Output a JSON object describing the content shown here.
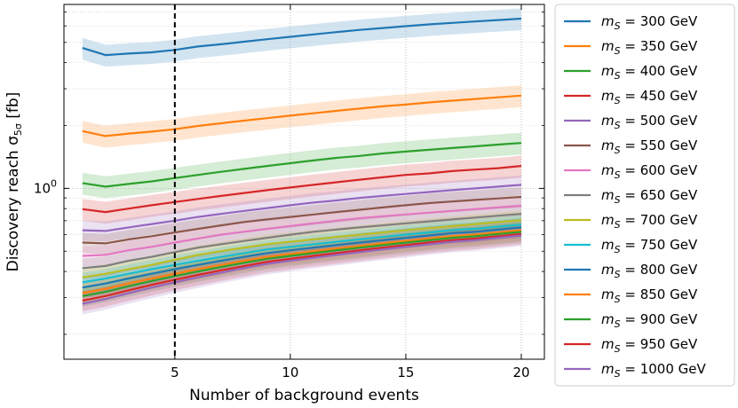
{
  "chart_data": {
    "type": "line",
    "title": "",
    "xlabel": "Number of background events",
    "ylabel_main": "Discovery reach σ",
    "ylabel_sub": "5σ",
    "ylabel_unit": " [fb]",
    "yscale": "log",
    "xlim": [
      0.2,
      21.0
    ],
    "ylim": [
      0.152,
      7.6
    ],
    "x_ticks": [
      5,
      10,
      15,
      20
    ],
    "y_tick_value": 1.0,
    "y_tick_text": "10",
    "y_tick_exp": "0",
    "grid": true,
    "vline_x": 5,
    "vline_style": "dashed",
    "legend_position": "outside-right",
    "legend_prefix": "m",
    "legend_sub": "S",
    "legend_eq": " = ",
    "x": [
      1,
      2,
      3,
      4,
      5,
      6,
      7,
      8,
      9,
      10,
      11,
      12,
      13,
      14,
      15,
      16,
      17,
      18,
      19,
      20
    ],
    "series": [
      {
        "name": "300 GeV",
        "color": "#1f77b4",
        "values": [
          4.7,
          4.35,
          4.42,
          4.48,
          4.6,
          4.78,
          4.9,
          5.04,
          5.18,
          5.32,
          5.46,
          5.6,
          5.74,
          5.86,
          5.98,
          6.1,
          6.2,
          6.3,
          6.4,
          6.5
        ],
        "band": 0.12
      },
      {
        "name": "350 GeV",
        "color": "#ff7f0e",
        "values": [
          1.88,
          1.78,
          1.83,
          1.87,
          1.92,
          1.99,
          2.05,
          2.11,
          2.17,
          2.23,
          2.29,
          2.35,
          2.41,
          2.47,
          2.52,
          2.58,
          2.63,
          2.68,
          2.73,
          2.78
        ],
        "band": 0.12
      },
      {
        "name": "400 GeV",
        "color": "#2ca02c",
        "values": [
          1.06,
          1.02,
          1.05,
          1.08,
          1.12,
          1.16,
          1.2,
          1.24,
          1.28,
          1.32,
          1.36,
          1.4,
          1.43,
          1.47,
          1.5,
          1.53,
          1.56,
          1.59,
          1.62,
          1.65
        ],
        "band": 0.12
      },
      {
        "name": "450 GeV",
        "color": "#d62728",
        "values": [
          0.795,
          0.77,
          0.8,
          0.83,
          0.86,
          0.89,
          0.92,
          0.95,
          0.98,
          1.01,
          1.04,
          1.07,
          1.1,
          1.13,
          1.16,
          1.18,
          1.21,
          1.23,
          1.25,
          1.28
        ],
        "band": 0.12
      },
      {
        "name": "500 GeV",
        "color": "#9467bd",
        "values": [
          0.63,
          0.625,
          0.65,
          0.675,
          0.7,
          0.73,
          0.755,
          0.78,
          0.805,
          0.83,
          0.855,
          0.875,
          0.9,
          0.92,
          0.94,
          0.96,
          0.98,
          1.0,
          1.02,
          1.04
        ],
        "band": 0.11
      },
      {
        "name": "550 GeV",
        "color": "#8c564b",
        "values": [
          0.55,
          0.545,
          0.57,
          0.59,
          0.615,
          0.64,
          0.665,
          0.69,
          0.71,
          0.73,
          0.75,
          0.77,
          0.79,
          0.81,
          0.83,
          0.85,
          0.865,
          0.88,
          0.895,
          0.91
        ],
        "band": 0.11
      },
      {
        "name": "600 GeV",
        "color": "#e377c2",
        "values": [
          0.475,
          0.48,
          0.505,
          0.525,
          0.55,
          0.575,
          0.6,
          0.62,
          0.64,
          0.66,
          0.68,
          0.7,
          0.72,
          0.735,
          0.75,
          0.765,
          0.78,
          0.795,
          0.81,
          0.825
        ],
        "band": 0.11
      },
      {
        "name": "650 GeV",
        "color": "#7f7f7f",
        "values": [
          0.415,
          0.425,
          0.45,
          0.47,
          0.495,
          0.52,
          0.54,
          0.56,
          0.58,
          0.6,
          0.62,
          0.635,
          0.65,
          0.665,
          0.68,
          0.695,
          0.71,
          0.725,
          0.74,
          0.755
        ],
        "band": 0.11
      },
      {
        "name": "700 GeV",
        "color": "#bcbd22",
        "values": [
          0.375,
          0.39,
          0.41,
          0.43,
          0.455,
          0.48,
          0.5,
          0.52,
          0.54,
          0.555,
          0.57,
          0.585,
          0.6,
          0.615,
          0.63,
          0.645,
          0.66,
          0.675,
          0.69,
          0.705
        ],
        "band": 0.11
      },
      {
        "name": "750 GeV",
        "color": "#17becf",
        "values": [
          0.355,
          0.37,
          0.39,
          0.41,
          0.43,
          0.45,
          0.47,
          0.49,
          0.51,
          0.525,
          0.54,
          0.555,
          0.57,
          0.585,
          0.6,
          0.615,
          0.63,
          0.64,
          0.655,
          0.67
        ],
        "band": 0.11
      },
      {
        "name": "800 GeV",
        "color": "#1f77b4",
        "values": [
          0.335,
          0.35,
          0.37,
          0.39,
          0.41,
          0.43,
          0.45,
          0.47,
          0.49,
          0.505,
          0.52,
          0.535,
          0.55,
          0.565,
          0.58,
          0.595,
          0.61,
          0.62,
          0.635,
          0.65
        ],
        "band": 0.11
      },
      {
        "name": "850 GeV",
        "color": "#ff7f0e",
        "values": [
          0.315,
          0.33,
          0.35,
          0.37,
          0.39,
          0.41,
          0.43,
          0.45,
          0.47,
          0.485,
          0.5,
          0.515,
          0.53,
          0.545,
          0.56,
          0.575,
          0.59,
          0.6,
          0.615,
          0.63
        ],
        "band": 0.11
      },
      {
        "name": "900 GeV",
        "color": "#2ca02c",
        "values": [
          0.305,
          0.32,
          0.34,
          0.36,
          0.38,
          0.4,
          0.42,
          0.44,
          0.46,
          0.475,
          0.49,
          0.505,
          0.52,
          0.535,
          0.55,
          0.565,
          0.58,
          0.59,
          0.605,
          0.62
        ],
        "band": 0.11
      },
      {
        "name": "950 GeV",
        "color": "#d62728",
        "values": [
          0.29,
          0.305,
          0.325,
          0.345,
          0.365,
          0.385,
          0.405,
          0.425,
          0.445,
          0.46,
          0.475,
          0.49,
          0.505,
          0.52,
          0.535,
          0.55,
          0.565,
          0.575,
          0.59,
          0.605
        ],
        "band": 0.11
      },
      {
        "name": "1000 GeV",
        "color": "#9467bd",
        "values": [
          0.28,
          0.295,
          0.315,
          0.335,
          0.355,
          0.375,
          0.395,
          0.415,
          0.435,
          0.45,
          0.465,
          0.48,
          0.495,
          0.51,
          0.525,
          0.54,
          0.555,
          0.565,
          0.58,
          0.595
        ],
        "band": 0.11
      }
    ]
  }
}
